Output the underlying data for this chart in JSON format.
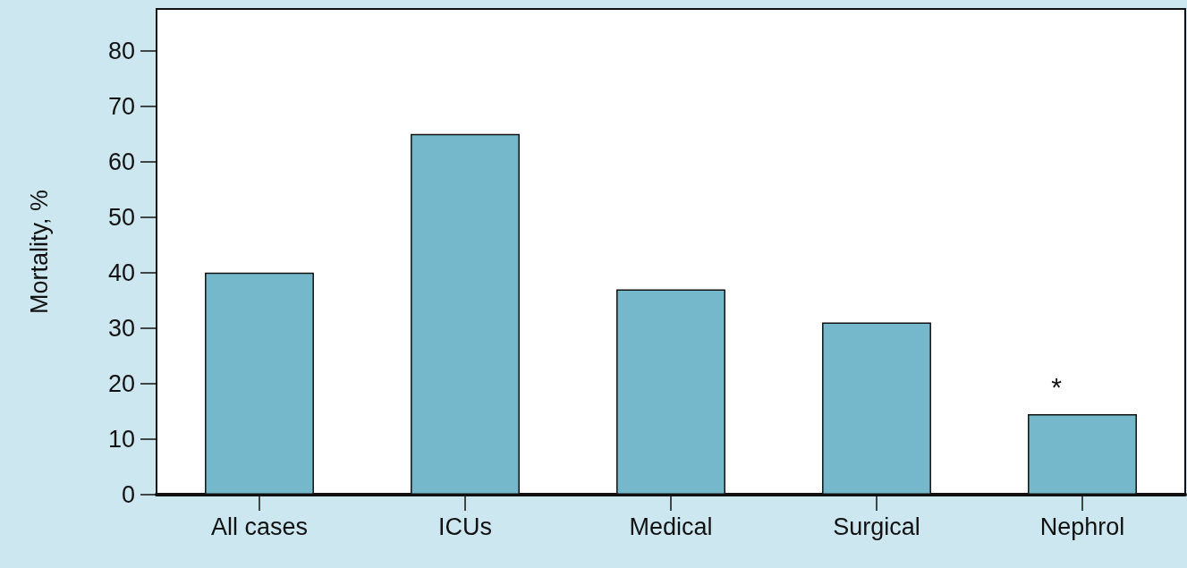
{
  "chart_data": {
    "type": "bar",
    "ylabel": "Mortality, %",
    "categories": [
      "All cases",
      "ICUs",
      "Medical",
      "Surgical",
      "Nephrol"
    ],
    "values": [
      40,
      65,
      37,
      31,
      14.5
    ],
    "color": "#75b8cb",
    "ylim": [
      0,
      87.5
    ],
    "yticks": [
      0,
      10,
      20,
      30,
      40,
      50,
      60,
      70,
      80
    ],
    "grid": false,
    "annotations": [
      "*"
    ]
  }
}
